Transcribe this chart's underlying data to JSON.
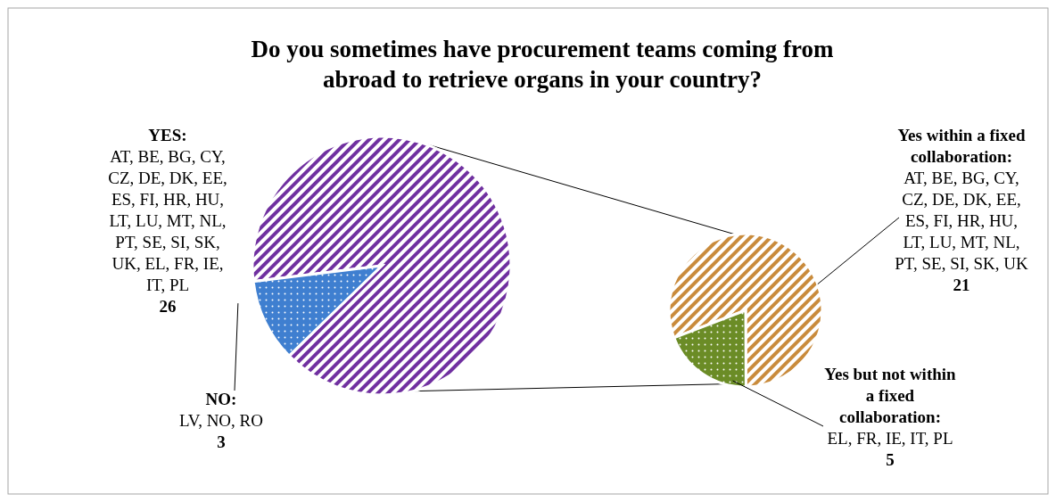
{
  "chart_data": [
    {
      "type": "pie",
      "title": "Do you sometimes have procurement teams coming from abroad to retrieve organs in your country?",
      "categories": [
        "YES: AT, BE, BG, CY, CZ, DE, DK, EE, ES, FI, HR, HU, LT, LU, MT, NL, PT, SE, SI, SK, UK, EL, FR, IE, IT, PL",
        "NO: LV, NO, RO"
      ],
      "values": [
        26,
        3
      ],
      "colors": [
        "#7030a0",
        "#3f7fd0"
      ],
      "data_labels": true
    },
    {
      "type": "pie",
      "categories": [
        "Yes within a fixed collaboration: AT, BE, BG, CY, CZ, DE, DK, EE, ES, FI, HR, HU, LT, LU, MT, NL, PT, SE, SI, SK, UK",
        "Yes but not within a fixed collaboration: EL, FR, IE, IT, PL"
      ],
      "values": [
        21,
        5
      ],
      "colors": [
        "#c98b3c",
        "#6b8c26"
      ],
      "data_labels": true
    }
  ]
}
